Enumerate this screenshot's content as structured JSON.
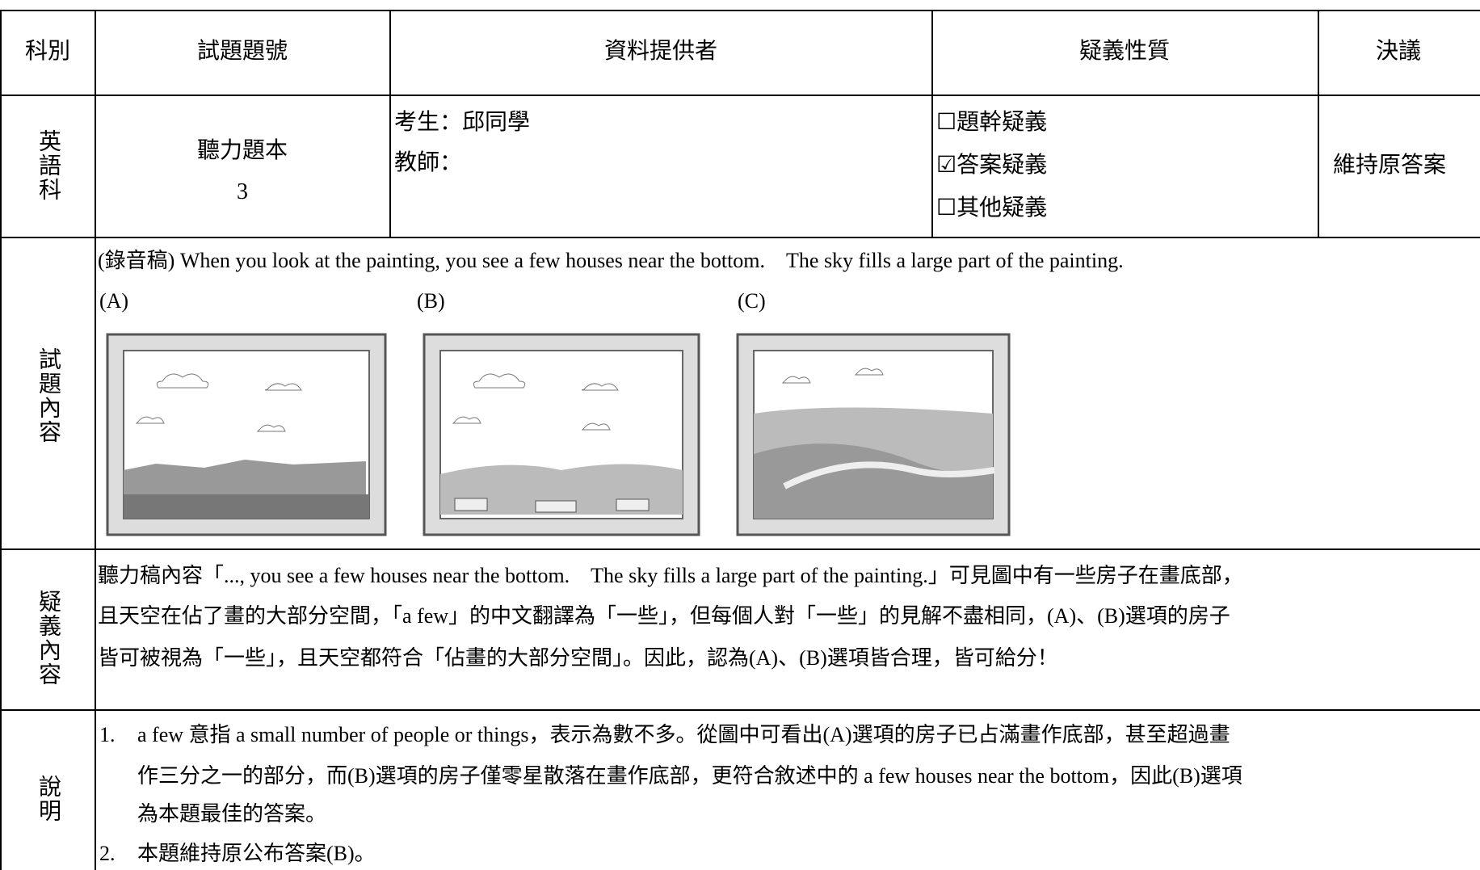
{
  "header": {
    "cells": [
      "科別",
      "試題題號",
      "資料提供者",
      "疑義性質",
      "決議"
    ]
  },
  "row": {
    "subject": "英語科",
    "question_number": [
      "聽力題本",
      "3"
    ],
    "provider": [
      "考生：邱同學",
      "教師："
    ],
    "nature": [
      "☐題幹疑義",
      "☑答案疑義",
      "☐其他疑義"
    ],
    "decision": "維持原答案"
  },
  "content": {
    "label": "試題內容",
    "transcript": "(錄音稿) When you look at the painting, you see a few houses near the bottom.　The sky fills a large part of the painting.",
    "options": [
      "(A)",
      "(B)",
      "(C)"
    ]
  },
  "doubt": {
    "label": "疑義內容",
    "lines": [
      "聽力稿內容「..., you see a few houses near the bottom.　The sky fills a large part of the painting.」可見圖中有一些房子在畫底部，",
      "且天空在佔了畫的大部分空間，「a few」的中文翻譯為「一些」，但每個人對「一些」的見解不盡相同，(A)、(B)選項的房子",
      "皆可被視為「一些」，且天空都符合「佔畫的大部分空間」。因此，認為(A)、(B)選項皆合理，皆可給分！"
    ]
  },
  "explanation": {
    "label": "說明",
    "items": [
      {
        "number": "1.",
        "lines": [
          "a few 意指 a small number of people or things，表示為數不多。從圖中可看出(A)選項的房子已占滿畫作底部，甚至超過畫",
          "作三分之一的部分，而(B)選項的房子僅零星散落在畫作底部，更符合敘述中的 a few houses near the bottom，因此(B)選項",
          "為本題最佳的答案。"
        ]
      },
      {
        "number": "2.",
        "lines": [
          "本題維持原公布答案(B)。"
        ]
      }
    ]
  }
}
